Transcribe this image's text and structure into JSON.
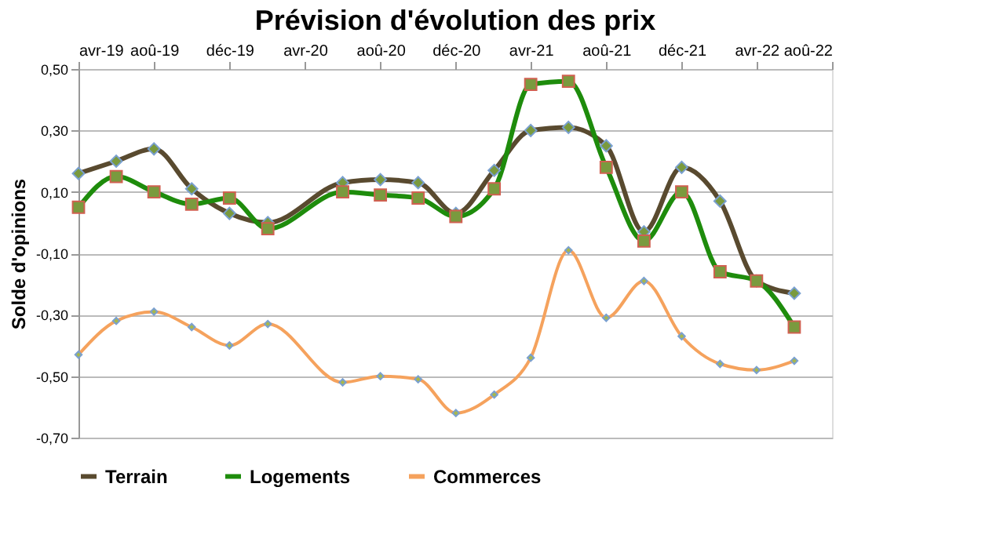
{
  "chart_data": {
    "type": "line",
    "title": "Prévision d'évolution des prix",
    "ylabel": "Solde d'opinions",
    "x": [
      "2019-04",
      "2019-06",
      "2019-08",
      "2019-10",
      "2019-12",
      "2020-02",
      "2020-06",
      "2020-08",
      "2020-10",
      "2020-12",
      "2021-02",
      "2021-04",
      "2021-06",
      "2021-08",
      "2021-10",
      "2021-12",
      "2022-02",
      "2022-04",
      "2022-06"
    ],
    "series": [
      {
        "name": "Terrain",
        "color": "#594a2f",
        "marker": "diamond",
        "values": [
          0.16,
          0.2,
          0.24,
          0.11,
          0.03,
          0.0,
          0.13,
          0.14,
          0.13,
          0.03,
          0.17,
          0.3,
          0.31,
          0.25,
          -0.03,
          0.18,
          0.07,
          -0.19,
          -0.23
        ]
      },
      {
        "name": "Logements",
        "color": "#1e8c0c",
        "marker": "square",
        "values": [
          0.05,
          0.15,
          0.1,
          0.06,
          0.08,
          -0.02,
          0.1,
          0.09,
          0.08,
          0.02,
          0.11,
          0.45,
          0.46,
          0.18,
          -0.06,
          0.1,
          -0.16,
          -0.19,
          -0.34
        ]
      },
      {
        "name": "Commerces",
        "color": "#f5a25d",
        "marker": "diamond",
        "values": [
          -0.43,
          -0.32,
          -0.29,
          -0.34,
          -0.4,
          -0.33,
          -0.52,
          -0.5,
          -0.51,
          -0.62,
          -0.56,
          -0.44,
          -0.09,
          -0.31,
          -0.19,
          -0.37,
          -0.46,
          -0.48,
          -0.45
        ]
      }
    ],
    "xlim": [
      "2019-04",
      "2022-08"
    ],
    "xticks": [
      {
        "value": "2019-04",
        "label": "avr-19"
      },
      {
        "value": "2019-08",
        "label": "aoû-19"
      },
      {
        "value": "2019-12",
        "label": "déc-19"
      },
      {
        "value": "2020-04",
        "label": "avr-20"
      },
      {
        "value": "2020-08",
        "label": "aoû-20"
      },
      {
        "value": "2020-12",
        "label": "déc-20"
      },
      {
        "value": "2021-04",
        "label": "avr-21"
      },
      {
        "value": "2021-08",
        "label": "aoû-21"
      },
      {
        "value": "2021-12",
        "label": "déc-21"
      },
      {
        "value": "2022-04",
        "label": "avr-22"
      },
      {
        "value": "2022-08",
        "label": "aoû-22"
      }
    ],
    "ylim": [
      -0.7,
      0.5
    ],
    "yticks": [
      {
        "value": 0.5,
        "label": "0,50"
      },
      {
        "value": 0.3,
        "label": "0,30"
      },
      {
        "value": 0.1,
        "label": "0,10"
      },
      {
        "value": -0.1,
        "label": "-0,10"
      },
      {
        "value": -0.3,
        "label": "-0,30"
      },
      {
        "value": -0.5,
        "label": "-0,50"
      },
      {
        "value": -0.7,
        "label": "-0,70"
      }
    ],
    "grid": "y",
    "legend": "bottom",
    "line_style": "solid"
  }
}
